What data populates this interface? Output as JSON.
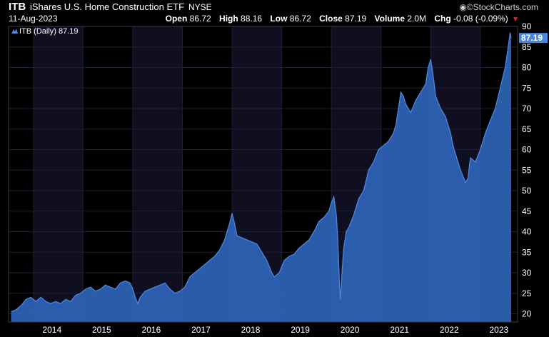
{
  "header": {
    "symbol": "ITB",
    "name": "iShares U.S. Home Construction ETF",
    "exchange": "NYSE",
    "date": "11-Aug-2023",
    "brand": "©StockCharts.com",
    "brand_icon": "globe-icon",
    "quote": [
      {
        "label": "Open",
        "value": "86.72"
      },
      {
        "label": "High",
        "value": "88.16"
      },
      {
        "label": "Low",
        "value": "86.72"
      },
      {
        "label": "Close",
        "value": "87.19"
      },
      {
        "label": "Volume",
        "value": "2.0M"
      }
    ],
    "change_label": "Chg",
    "change_value": "-0.08 (-0.09%)",
    "change_icon": "down-triangle-icon"
  },
  "colors": {
    "background": "#000000",
    "band_dark": "#0f0f21",
    "grid": "#1f1f33",
    "area_fill": "#2e64b8",
    "line": "#4c86dc",
    "change_down": "#e03030",
    "last_price_box": "#4c86dc"
  },
  "chart_data": {
    "type": "area",
    "legend": "ITB (Daily) 87.19",
    "legend_icon": "mountain-area-icon",
    "last_price": "87.19",
    "y_axis_position": "right",
    "ylim": [
      18,
      90
    ],
    "y_ticks": [
      20,
      25,
      30,
      35,
      40,
      45,
      50,
      55,
      60,
      65,
      70,
      75,
      80,
      85,
      90
    ],
    "x_ticks": [
      "2014",
      "2015",
      "2016",
      "2017",
      "2018",
      "2019",
      "2020",
      "2021",
      "2022",
      "2023"
    ],
    "alternating_year_bands": true,
    "grid": true,
    "series": [
      {
        "x": [
          2013.55,
          2013.65,
          2013.75,
          2013.85,
          2013.95,
          2014.05,
          2014.15,
          2014.25,
          2014.35,
          2014.45,
          2014.55,
          2014.65,
          2014.75,
          2014.85,
          2014.95,
          2015.05,
          2015.15,
          2015.25,
          2015.35,
          2015.45,
          2015.55,
          2015.65,
          2015.75,
          2015.85,
          2015.95,
          2016.0,
          2016.05,
          2016.1,
          2016.15,
          2016.25,
          2016.35,
          2016.45,
          2016.55,
          2016.65,
          2016.75,
          2016.85,
          2016.95,
          2017.05,
          2017.15,
          2017.25,
          2017.35,
          2017.45,
          2017.55,
          2017.65,
          2017.75,
          2017.85,
          2017.95,
          2018.0,
          2018.05,
          2018.1,
          2018.2,
          2018.3,
          2018.4,
          2018.5,
          2018.6,
          2018.7,
          2018.8,
          2018.85,
          2018.95,
          2019.05,
          2019.15,
          2019.25,
          2019.35,
          2019.45,
          2019.55,
          2019.65,
          2019.75,
          2019.85,
          2019.95,
          2020.0,
          2020.05,
          2020.1,
          2020.13,
          2020.16,
          2020.18,
          2020.2,
          2020.22,
          2020.25,
          2020.3,
          2020.35,
          2020.45,
          2020.55,
          2020.65,
          2020.75,
          2020.85,
          2020.95,
          2021.05,
          2021.15,
          2021.25,
          2021.3,
          2021.35,
          2021.4,
          2021.45,
          2021.5,
          2021.6,
          2021.7,
          2021.8,
          2021.9,
          2021.95,
          2022.0,
          2022.05,
          2022.1,
          2022.2,
          2022.3,
          2022.4,
          2022.45,
          2022.5,
          2022.6,
          2022.7,
          2022.75,
          2022.8,
          2022.9,
          2023.0,
          2023.1,
          2023.2,
          2023.3,
          2023.4,
          2023.5,
          2023.55,
          2023.6,
          2023.62
        ],
        "y": [
          20.5,
          21.0,
          22.0,
          23.5,
          24.0,
          23.0,
          24.0,
          23.0,
          22.5,
          23.0,
          22.5,
          23.5,
          23.0,
          24.5,
          25.0,
          26.0,
          26.5,
          25.5,
          26.0,
          27.0,
          26.5,
          26.0,
          27.5,
          28.0,
          27.5,
          26.0,
          24.0,
          22.5,
          24.0,
          25.5,
          26.0,
          26.5,
          27.0,
          27.5,
          26.0,
          25.0,
          25.5,
          26.5,
          29.0,
          30.0,
          31.0,
          32.0,
          33.0,
          34.0,
          35.5,
          38.0,
          42.0,
          44.5,
          42.0,
          39.0,
          38.5,
          38.0,
          37.5,
          37.0,
          35.0,
          33.0,
          30.0,
          29.0,
          30.0,
          33.0,
          34.0,
          34.5,
          36.0,
          37.0,
          38.0,
          40.0,
          42.5,
          43.5,
          45.0,
          47.0,
          48.5,
          44.0,
          38.0,
          28.0,
          23.5,
          27.0,
          31.0,
          36.0,
          40.0,
          41.0,
          44.0,
          48.0,
          50.0,
          55.0,
          57.0,
          60.0,
          61.0,
          62.0,
          64.0,
          66.0,
          70.0,
          74.0,
          73.0,
          71.0,
          69.0,
          72.0,
          74.0,
          76.0,
          80.0,
          82.0,
          78.0,
          73.0,
          70.0,
          68.0,
          64.0,
          61.0,
          59.0,
          55.0,
          52.0,
          53.0,
          58.0,
          57.0,
          60.0,
          64.0,
          67.0,
          70.0,
          75.0,
          80.0,
          84.0,
          88.5,
          87.19
        ]
      }
    ]
  }
}
